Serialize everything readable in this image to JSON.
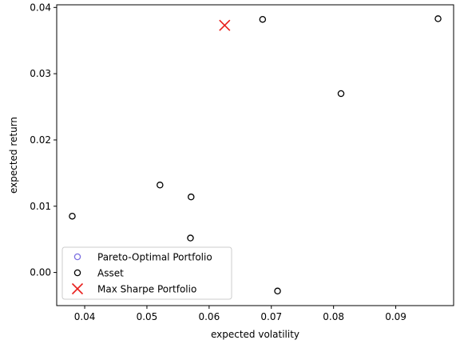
{
  "chart_data": {
    "type": "scatter",
    "title": "",
    "xlabel": "expected volatility",
    "ylabel": "expected return",
    "xlim": [
      0.0355,
      0.0993
    ],
    "ylim": [
      -0.005,
      0.0404
    ],
    "x_ticks": [
      0.04,
      0.05,
      0.06,
      0.07,
      0.08,
      0.09
    ],
    "x_tick_labels": [
      "0.04",
      "0.05",
      "0.06",
      "0.07",
      "0.08",
      "0.09"
    ],
    "y_ticks": [
      0.0,
      0.01,
      0.02,
      0.03,
      0.04
    ],
    "y_tick_labels": [
      "0.00",
      "0.01",
      "0.02",
      "0.03",
      "0.04"
    ],
    "grid": false,
    "legend_position": "lower-left",
    "series": [
      {
        "name": "Pareto-Optimal Portfolio",
        "marker": "open-circle",
        "color": "#7b6fe0",
        "x": [],
        "y": []
      },
      {
        "name": "Asset",
        "marker": "open-circle",
        "color": "#000000",
        "x": [
          0.038,
          0.0521,
          0.0571,
          0.057,
          0.0686,
          0.071,
          0.0812,
          0.0968
        ],
        "y": [
          0.0085,
          0.0132,
          0.0114,
          0.0052,
          0.0382,
          -0.0028,
          0.027,
          0.0383
        ]
      },
      {
        "name": "Max Sharpe Portfolio",
        "marker": "x",
        "color": "#e8201d",
        "x": [
          0.0625
        ],
        "y": [
          0.0373
        ]
      }
    ]
  }
}
